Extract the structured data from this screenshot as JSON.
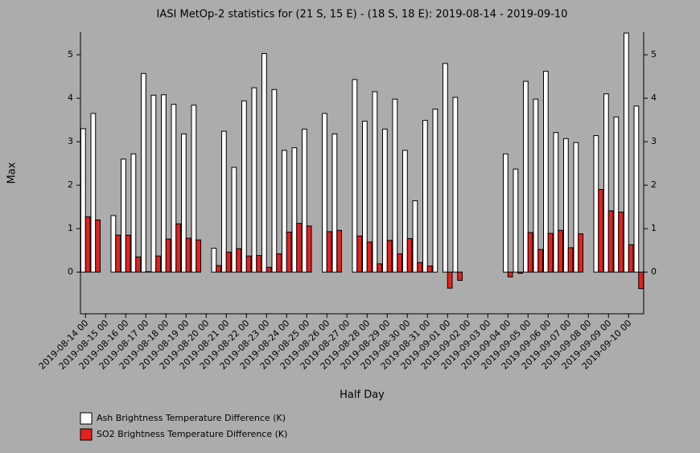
{
  "chart_data": {
    "type": "bar",
    "title": "IASI MetOp-2 statistics for (21 S, 15 E) - (18 S, 18 E): 2019-08-14 - 2019-09-10",
    "x_label": "Half Day",
    "y_label": "Max",
    "categories": [
      "2019-08-14 00",
      null,
      "2019-08-15 00",
      null,
      "2019-08-16 00",
      null,
      "2019-08-17 00",
      null,
      "2019-08-18 00",
      null,
      "2019-08-19 00",
      null,
      "2019-08-20 00",
      null,
      "2019-08-21 00",
      null,
      "2019-08-22 00",
      null,
      "2019-08-23 00",
      null,
      "2019-08-24 00",
      null,
      "2019-08-25 00",
      null,
      "2019-08-26 00",
      null,
      "2019-08-27 00",
      null,
      "2019-08-28 00",
      null,
      "2019-08-29 00",
      null,
      "2019-08-30 00",
      null,
      "2019-08-31 00",
      null,
      "2019-09-01 00",
      null,
      "2019-09-02 00",
      null,
      "2019-09-03 00",
      null,
      "2019-09-04 00",
      null,
      "2019-09-05 00",
      null,
      "2019-09-06 00",
      null,
      "2019-09-07 00",
      null,
      "2019-09-08 00",
      null,
      "2019-09-09 00",
      null,
      "2019-09-10 00",
      null
    ],
    "series": [
      {
        "name": "Ash Brightness Temperature Difference (K)",
        "color": "#ffffff",
        "values": [
          3.3,
          3.65,
          null,
          1.3,
          2.6,
          2.72,
          4.57,
          4.07,
          4.08,
          3.86,
          3.18,
          3.84,
          null,
          0.55,
          3.24,
          2.41,
          3.94,
          4.24,
          5.03,
          4.2,
          2.8,
          2.86,
          3.29,
          null,
          3.65,
          3.18,
          null,
          4.43,
          3.47,
          4.15,
          3.29,
          3.98,
          2.8,
          1.64,
          3.49,
          3.75,
          4.8,
          4.02,
          null,
          null,
          null,
          null,
          2.72,
          2.37,
          4.39,
          3.98,
          4.62,
          3.21,
          3.07,
          2.98,
          null,
          3.14,
          4.1,
          3.57,
          5.5,
          3.82
        ]
      },
      {
        "name": "SO2 Brightness Temperature Difference (K)",
        "color": "#e8201e",
        "values": [
          1.27,
          1.2,
          null,
          0.85,
          0.85,
          0.35,
          0.01,
          0.37,
          0.76,
          1.11,
          0.78,
          0.74,
          null,
          0.15,
          0.46,
          0.54,
          0.37,
          0.38,
          0.11,
          0.42,
          0.92,
          1.12,
          1.06,
          null,
          0.93,
          0.96,
          null,
          0.83,
          0.69,
          0.19,
          0.73,
          0.42,
          0.77,
          0.22,
          0.14,
          0.0,
          -0.37,
          -0.19,
          null,
          null,
          null,
          null,
          -0.11,
          -0.03,
          0.91,
          0.52,
          0.89,
          0.96,
          0.56,
          0.88,
          null,
          1.9,
          1.41,
          1.38,
          0.63,
          -0.38
        ]
      }
    ],
    "ylim": [
      -0.96,
      5.52
    ],
    "yticks": [
      0,
      1,
      2,
      3,
      4,
      5
    ],
    "grid": false,
    "legend": "bottom-left"
  }
}
